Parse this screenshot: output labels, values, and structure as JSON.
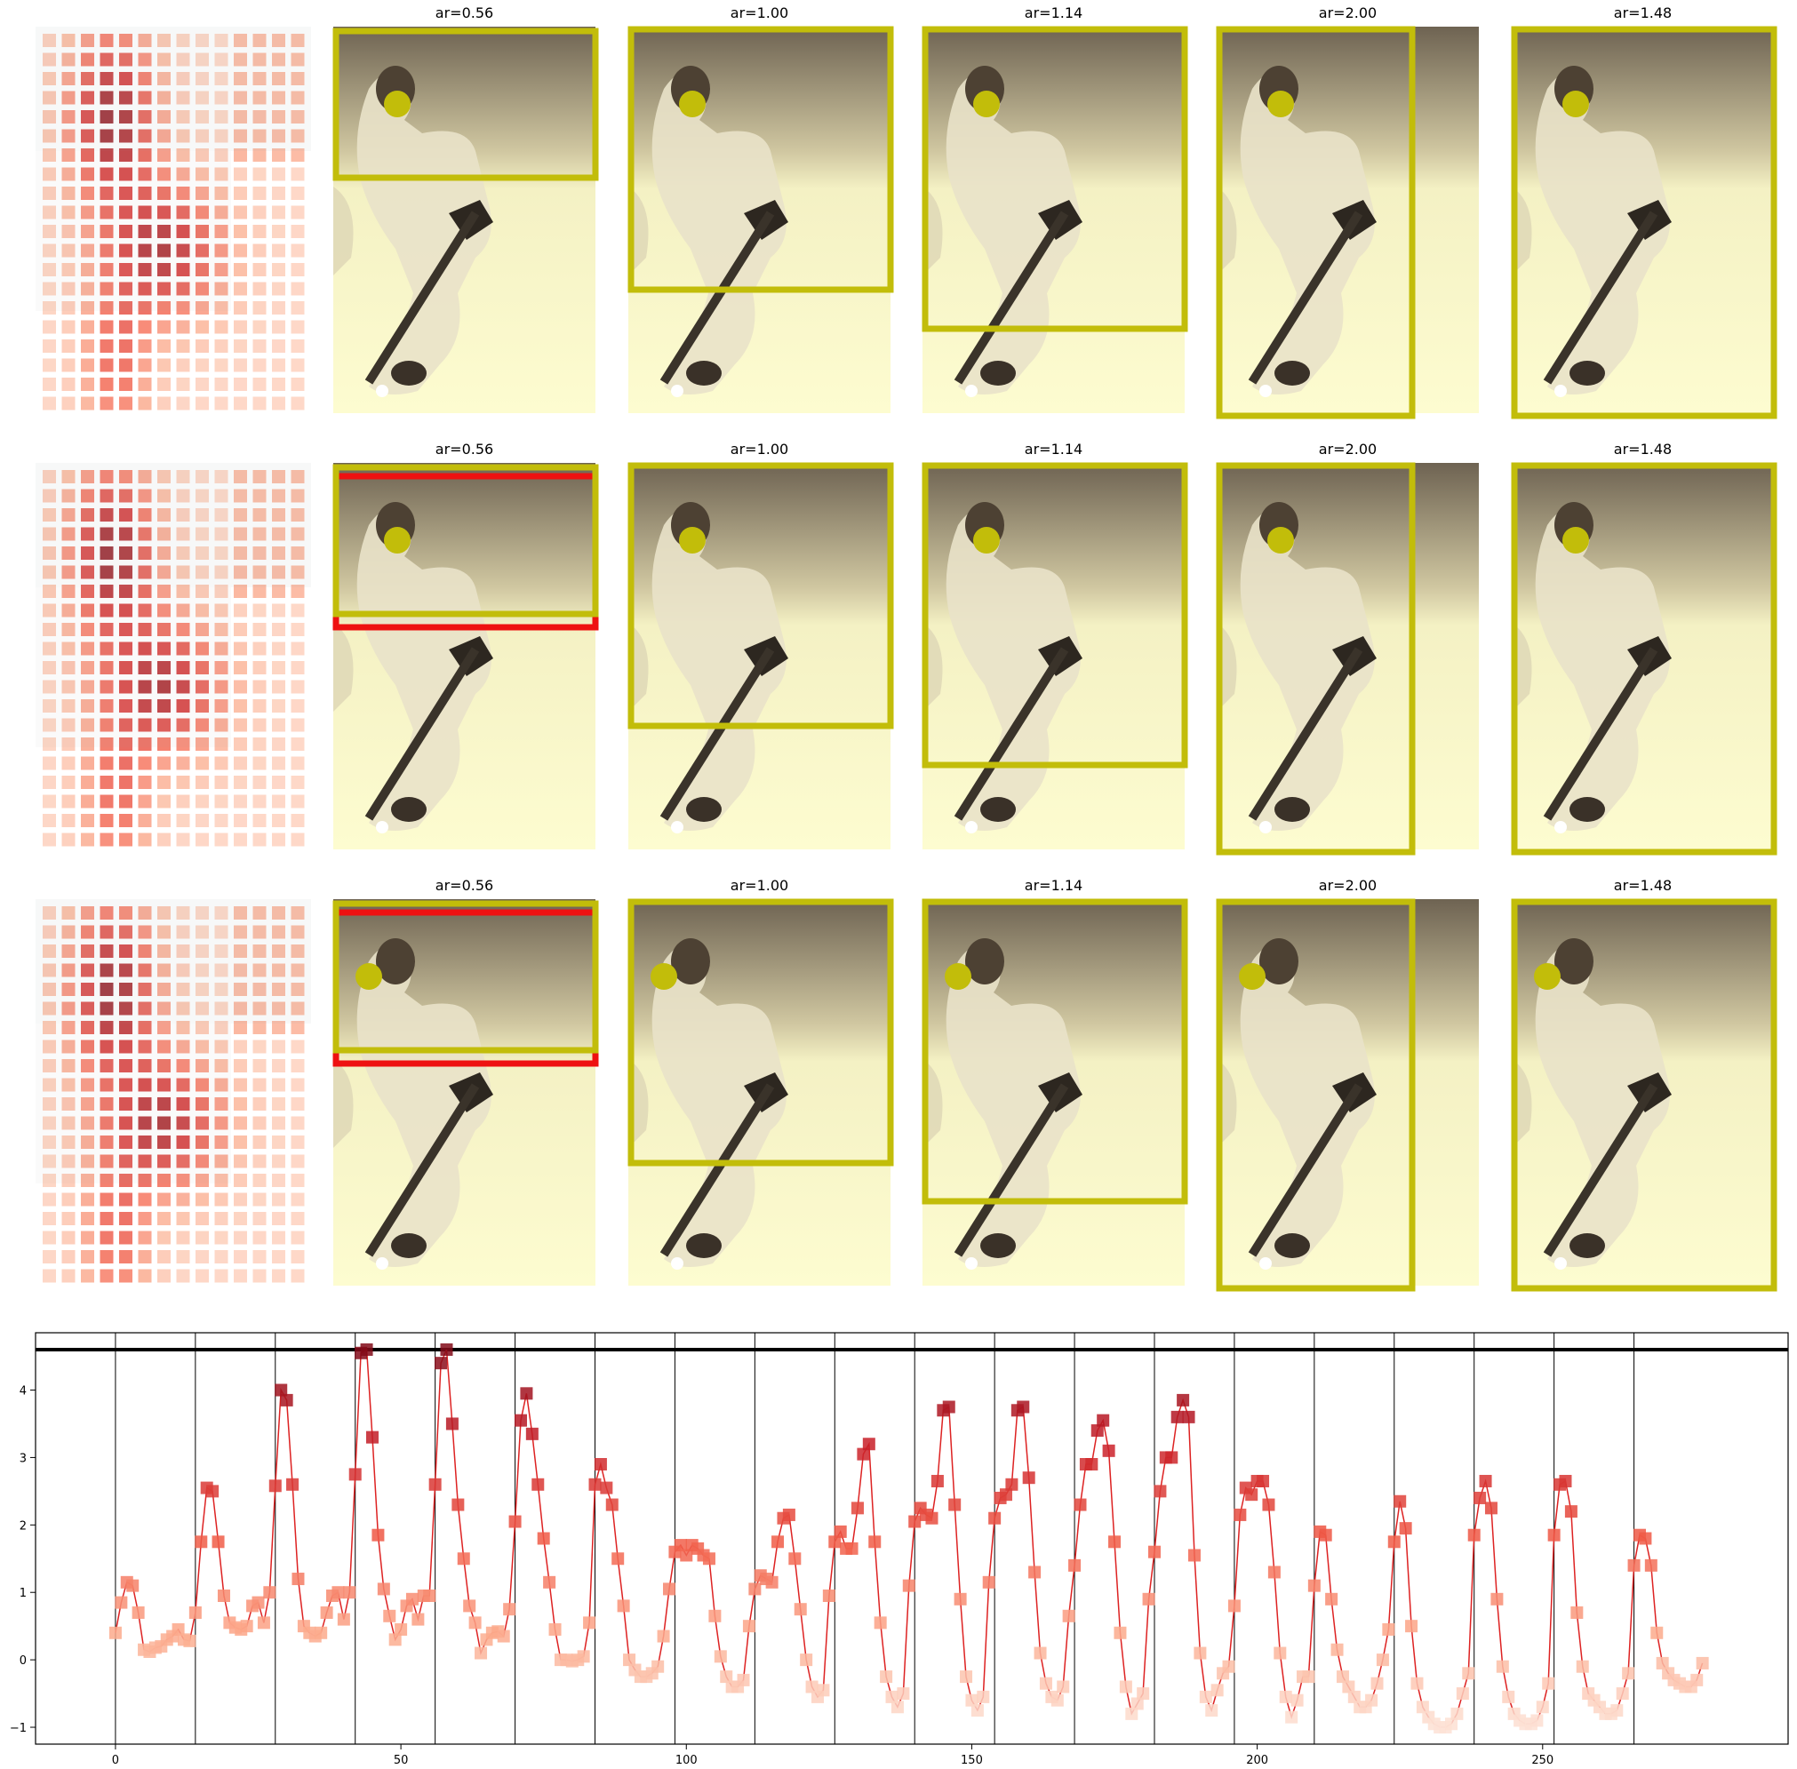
{
  "figure": {
    "rows": [
      {
        "panels": [
          {
            "title": "ar=0.56",
            "red_box": false
          },
          {
            "title": "ar=1.00"
          },
          {
            "title": "ar=1.14"
          },
          {
            "title": "ar=2.00"
          },
          {
            "title": "ar=1.48"
          }
        ]
      },
      {
        "panels": [
          {
            "title": "ar=0.56",
            "red_box": true
          },
          {
            "title": "ar=1.00"
          },
          {
            "title": "ar=1.14"
          },
          {
            "title": "ar=2.00"
          },
          {
            "title": "ar=1.48"
          }
        ]
      },
      {
        "panels": [
          {
            "title": "ar=0.56",
            "red_box": true
          },
          {
            "title": "ar=1.00"
          },
          {
            "title": "ar=1.14"
          },
          {
            "title": "ar=2.00"
          },
          {
            "title": "ar=1.48"
          }
        ]
      }
    ],
    "colors": {
      "box": "#c2bd0a",
      "dot": "#c2bd0a",
      "red_box": "#ee1111",
      "line": "#dd2222",
      "marker": "#cc2222"
    }
  },
  "chart_data": {
    "type": "line",
    "title": "",
    "xlabel": "",
    "ylabel": "",
    "xlim": [
      -14,
      293
    ],
    "ylim": [
      -1.25,
      4.85
    ],
    "xticks": [
      0,
      50,
      100,
      150,
      200,
      250
    ],
    "yticks": [
      -1,
      0,
      1,
      2,
      3,
      4
    ],
    "hline": 4.6,
    "vlines": [
      0,
      14,
      28,
      42,
      56,
      70,
      84,
      98,
      112,
      126,
      140,
      154,
      168,
      182,
      196,
      210,
      224,
      238,
      252,
      266
    ],
    "grid": false,
    "series": [
      {
        "points": [
          [
            0,
            0.4
          ],
          [
            1,
            0.85
          ],
          [
            2,
            1.15
          ],
          [
            3,
            1.1
          ],
          [
            4,
            0.7
          ],
          [
            5,
            0.15
          ],
          [
            6,
            0.12
          ],
          [
            7,
            0.18
          ],
          [
            8,
            0.2
          ],
          [
            9,
            0.3
          ],
          [
            10,
            0.35
          ],
          [
            11,
            0.45
          ],
          [
            12,
            0.3
          ],
          [
            13,
            0.28
          ],
          [
            14,
            0.7
          ],
          [
            15,
            1.75
          ],
          [
            16,
            2.55
          ],
          [
            17,
            2.5
          ],
          [
            18,
            1.75
          ],
          [
            19,
            0.95
          ],
          [
            20,
            0.55
          ],
          [
            21,
            0.48
          ],
          [
            22,
            0.45
          ],
          [
            23,
            0.5
          ],
          [
            24,
            0.8
          ],
          [
            25,
            0.85
          ],
          [
            26,
            0.55
          ],
          [
            27,
            1.0
          ],
          [
            28,
            2.58
          ],
          [
            29,
            4.0
          ],
          [
            30,
            3.85
          ],
          [
            31,
            2.6
          ],
          [
            32,
            1.2
          ],
          [
            33,
            0.5
          ],
          [
            34,
            0.4
          ],
          [
            35,
            0.35
          ],
          [
            36,
            0.4
          ],
          [
            37,
            0.7
          ],
          [
            38,
            0.95
          ],
          [
            39,
            1.0
          ],
          [
            40,
            0.6
          ],
          [
            41,
            1.0
          ],
          [
            42,
            2.75
          ],
          [
            43,
            4.55
          ],
          [
            44,
            4.6
          ],
          [
            45,
            3.3
          ],
          [
            46,
            1.85
          ],
          [
            47,
            1.05
          ],
          [
            48,
            0.65
          ],
          [
            49,
            0.3
          ],
          [
            50,
            0.45
          ],
          [
            51,
            0.8
          ],
          [
            52,
            0.9
          ],
          [
            53,
            0.6
          ],
          [
            54,
            0.95
          ],
          [
            55,
            0.95
          ],
          [
            56,
            2.6
          ],
          [
            57,
            4.4
          ],
          [
            58,
            4.6
          ],
          [
            59,
            3.5
          ],
          [
            60,
            2.3
          ],
          [
            61,
            1.5
          ],
          [
            62,
            0.8
          ],
          [
            63,
            0.55
          ],
          [
            64,
            0.1
          ],
          [
            65,
            0.3
          ],
          [
            66,
            0.4
          ],
          [
            67,
            0.42
          ],
          [
            68,
            0.35
          ],
          [
            69,
            0.75
          ],
          [
            70,
            2.05
          ],
          [
            71,
            3.55
          ],
          [
            72,
            3.95
          ],
          [
            73,
            3.35
          ],
          [
            74,
            2.6
          ],
          [
            75,
            1.8
          ],
          [
            76,
            1.15
          ],
          [
            77,
            0.45
          ],
          [
            78,
            0.0
          ],
          [
            79,
            0.0
          ],
          [
            80,
            -0.02
          ],
          [
            81,
            0.0
          ],
          [
            82,
            0.05
          ],
          [
            83,
            0.55
          ],
          [
            84,
            2.6
          ],
          [
            85,
            2.9
          ],
          [
            86,
            2.55
          ],
          [
            87,
            2.3
          ],
          [
            88,
            1.5
          ],
          [
            89,
            0.8
          ],
          [
            90,
            0.0
          ],
          [
            91,
            -0.15
          ],
          [
            92,
            -0.25
          ],
          [
            93,
            -0.25
          ],
          [
            94,
            -0.2
          ],
          [
            95,
            -0.1
          ],
          [
            96,
            0.35
          ],
          [
            97,
            1.05
          ],
          [
            98,
            1.6
          ],
          [
            99,
            1.7
          ],
          [
            100,
            1.55
          ],
          [
            101,
            1.7
          ],
          [
            102,
            1.65
          ],
          [
            103,
            1.55
          ],
          [
            104,
            1.5
          ],
          [
            105,
            0.65
          ],
          [
            106,
            0.05
          ],
          [
            107,
            -0.25
          ],
          [
            108,
            -0.4
          ],
          [
            109,
            -0.4
          ],
          [
            110,
            -0.3
          ],
          [
            111,
            0.5
          ],
          [
            112,
            1.05
          ],
          [
            113,
            1.25
          ],
          [
            114,
            1.2
          ],
          [
            115,
            1.15
          ],
          [
            116,
            1.75
          ],
          [
            117,
            2.1
          ],
          [
            118,
            2.15
          ],
          [
            119,
            1.5
          ],
          [
            120,
            0.75
          ],
          [
            121,
            0.0
          ],
          [
            122,
            -0.4
          ],
          [
            123,
            -0.55
          ],
          [
            124,
            -0.45
          ],
          [
            125,
            0.95
          ],
          [
            126,
            1.75
          ],
          [
            127,
            1.9
          ],
          [
            128,
            1.65
          ],
          [
            129,
            1.65
          ],
          [
            130,
            2.25
          ],
          [
            131,
            3.05
          ],
          [
            132,
            3.2
          ],
          [
            133,
            1.75
          ],
          [
            134,
            0.55
          ],
          [
            135,
            -0.25
          ],
          [
            136,
            -0.55
          ],
          [
            137,
            -0.7
          ],
          [
            138,
            -0.5
          ],
          [
            139,
            1.1
          ],
          [
            140,
            2.05
          ],
          [
            141,
            2.25
          ],
          [
            142,
            2.15
          ],
          [
            143,
            2.1
          ],
          [
            144,
            2.65
          ],
          [
            145,
            3.7
          ],
          [
            146,
            3.75
          ],
          [
            147,
            2.3
          ],
          [
            148,
            0.9
          ],
          [
            149,
            -0.25
          ],
          [
            150,
            -0.6
          ],
          [
            151,
            -0.75
          ],
          [
            152,
            -0.55
          ],
          [
            153,
            1.15
          ],
          [
            154,
            2.1
          ],
          [
            155,
            2.4
          ],
          [
            156,
            2.45
          ],
          [
            157,
            2.6
          ],
          [
            158,
            3.7
          ],
          [
            159,
            3.75
          ],
          [
            160,
            2.7
          ],
          [
            161,
            1.3
          ],
          [
            162,
            0.1
          ],
          [
            163,
            -0.35
          ],
          [
            164,
            -0.55
          ],
          [
            165,
            -0.6
          ],
          [
            166,
            -0.4
          ],
          [
            167,
            0.65
          ],
          [
            168,
            1.4
          ],
          [
            169,
            2.3
          ],
          [
            170,
            2.9
          ],
          [
            171,
            2.9
          ],
          [
            172,
            3.4
          ],
          [
            173,
            3.55
          ],
          [
            174,
            3.1
          ],
          [
            175,
            1.75
          ],
          [
            176,
            0.4
          ],
          [
            177,
            -0.4
          ],
          [
            178,
            -0.8
          ],
          [
            179,
            -0.65
          ],
          [
            180,
            -0.5
          ],
          [
            181,
            0.9
          ],
          [
            182,
            1.6
          ],
          [
            183,
            2.5
          ],
          [
            184,
            3.0
          ],
          [
            185,
            3.0
          ],
          [
            186,
            3.6
          ],
          [
            187,
            3.85
          ],
          [
            188,
            3.6
          ],
          [
            189,
            1.55
          ],
          [
            190,
            0.1
          ],
          [
            191,
            -0.55
          ],
          [
            192,
            -0.75
          ],
          [
            193,
            -0.45
          ],
          [
            194,
            -0.2
          ],
          [
            195,
            -0.1
          ],
          [
            196,
            0.8
          ],
          [
            197,
            2.15
          ],
          [
            198,
            2.55
          ],
          [
            199,
            2.45
          ],
          [
            200,
            2.65
          ],
          [
            201,
            2.65
          ],
          [
            202,
            2.3
          ],
          [
            203,
            1.3
          ],
          [
            204,
            0.1
          ],
          [
            205,
            -0.55
          ],
          [
            206,
            -0.85
          ],
          [
            207,
            -0.6
          ],
          [
            208,
            -0.25
          ],
          [
            209,
            -0.25
          ],
          [
            210,
            1.1
          ],
          [
            211,
            1.9
          ],
          [
            212,
            1.85
          ],
          [
            213,
            0.9
          ],
          [
            214,
            0.15
          ],
          [
            215,
            -0.25
          ],
          [
            216,
            -0.4
          ],
          [
            217,
            -0.55
          ],
          [
            218,
            -0.7
          ],
          [
            219,
            -0.7
          ],
          [
            220,
            -0.6
          ],
          [
            221,
            -0.35
          ],
          [
            222,
            0.0
          ],
          [
            223,
            0.45
          ],
          [
            224,
            1.75
          ],
          [
            225,
            2.35
          ],
          [
            226,
            1.95
          ],
          [
            227,
            0.5
          ],
          [
            228,
            -0.35
          ],
          [
            229,
            -0.7
          ],
          [
            230,
            -0.85
          ],
          [
            231,
            -0.95
          ],
          [
            232,
            -1.0
          ],
          [
            233,
            -1.0
          ],
          [
            234,
            -0.95
          ],
          [
            235,
            -0.8
          ],
          [
            236,
            -0.5
          ],
          [
            237,
            -0.2
          ],
          [
            238,
            1.85
          ],
          [
            239,
            2.4
          ],
          [
            240,
            2.65
          ],
          [
            241,
            2.25
          ],
          [
            242,
            0.9
          ],
          [
            243,
            -0.1
          ],
          [
            244,
            -0.55
          ],
          [
            245,
            -0.8
          ],
          [
            246,
            -0.9
          ],
          [
            247,
            -0.95
          ],
          [
            248,
            -0.95
          ],
          [
            249,
            -0.9
          ],
          [
            250,
            -0.7
          ],
          [
            251,
            -0.35
          ],
          [
            252,
            1.85
          ],
          [
            253,
            2.6
          ],
          [
            254,
            2.65
          ],
          [
            255,
            2.2
          ],
          [
            256,
            0.7
          ],
          [
            257,
            -0.1
          ],
          [
            258,
            -0.5
          ],
          [
            259,
            -0.6
          ],
          [
            260,
            -0.7
          ],
          [
            261,
            -0.8
          ],
          [
            262,
            -0.8
          ],
          [
            263,
            -0.75
          ],
          [
            264,
            -0.5
          ],
          [
            265,
            -0.2
          ],
          [
            266,
            1.4
          ],
          [
            267,
            1.85
          ],
          [
            268,
            1.8
          ],
          [
            269,
            1.4
          ],
          [
            270,
            0.4
          ],
          [
            271,
            -0.05
          ],
          [
            272,
            -0.2
          ],
          [
            273,
            -0.3
          ],
          [
            274,
            -0.35
          ],
          [
            275,
            -0.4
          ],
          [
            276,
            -0.4
          ],
          [
            277,
            -0.3
          ],
          [
            278,
            -0.05
          ]
        ]
      }
    ]
  }
}
